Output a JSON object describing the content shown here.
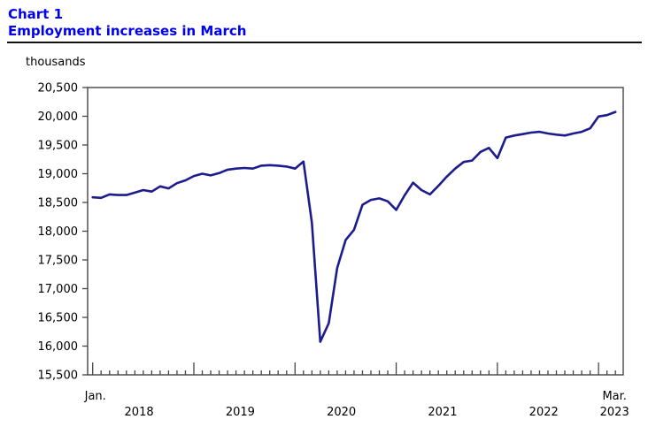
{
  "page": {
    "title_line1": "Chart 1",
    "title_line2": "Employment increases in March",
    "unit_label": "thousands"
  },
  "colors": {
    "title": "#0000ee",
    "line": "#1c1c8f",
    "axis": "#444444",
    "rule": "#111111"
  },
  "chart_data": {
    "type": "line",
    "title": "Employment increases in March",
    "ylabel": "thousands",
    "x_start": "Jan 2018",
    "x_end": "Mar 2023",
    "first_x_label": "Jan.",
    "last_x_label": "Mar.",
    "year_labels": [
      "2018",
      "2019",
      "2020",
      "2021",
      "2022",
      "2023"
    ],
    "ylim": [
      15500,
      20500
    ],
    "y_ticks": [
      {
        "value": 15500,
        "label": "15,500"
      },
      {
        "value": 16000,
        "label": "16,000"
      },
      {
        "value": 16500,
        "label": "16,500"
      },
      {
        "value": 17000,
        "label": "17,000"
      },
      {
        "value": 17500,
        "label": "17,500"
      },
      {
        "value": 18000,
        "label": "18,000"
      },
      {
        "value": 18500,
        "label": "18,500"
      },
      {
        "value": 19000,
        "label": "19,000"
      },
      {
        "value": 19500,
        "label": "19,500"
      },
      {
        "value": 20000,
        "label": "20,000"
      },
      {
        "value": 20500,
        "label": "20,500"
      }
    ],
    "grid": false,
    "legend": "none",
    "series": [
      {
        "name": "Employment (thousands, monthly, Jan 2018 - Mar 2023)",
        "values": [
          18590,
          18580,
          18640,
          18630,
          18630,
          18670,
          18715,
          18690,
          18780,
          18745,
          18835,
          18885,
          18960,
          19000,
          18970,
          19010,
          19070,
          19090,
          19100,
          19090,
          19140,
          19150,
          19140,
          19125,
          19090,
          19210,
          18150,
          16075,
          16400,
          17360,
          17845,
          18025,
          18460,
          18545,
          18570,
          18520,
          18370,
          18625,
          18845,
          18715,
          18640,
          18790,
          18950,
          19090,
          19205,
          19230,
          19380,
          19450,
          19270,
          19630,
          19665,
          19690,
          19715,
          19730,
          19700,
          19680,
          19665,
          19700,
          19730,
          19790,
          19995,
          20020,
          20075
        ]
      }
    ]
  }
}
